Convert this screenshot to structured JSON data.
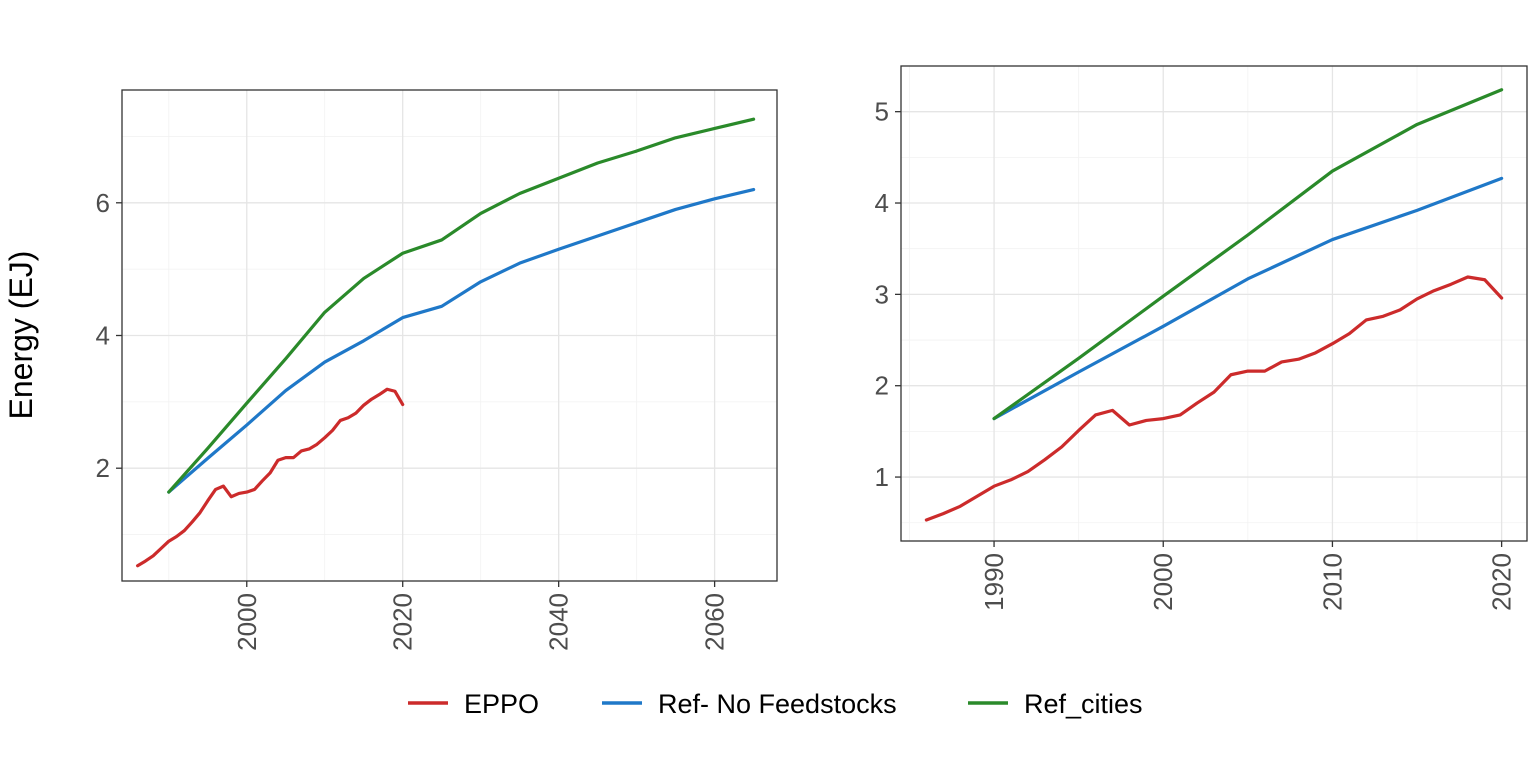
{
  "figure": {
    "ylabel": "Energy (EJ)"
  },
  "colors": {
    "EPPO": "#cc2b2b",
    "Ref- No Feedstocks": "#1f78c8",
    "Ref_cities": "#2a8a2a"
  },
  "legend": {
    "position": "bottom",
    "items": [
      "EPPO",
      "Ref- No Feedstocks",
      "Ref_cities"
    ]
  },
  "chart_data": [
    {
      "type": "line",
      "xlabel": "",
      "ylabel": "Energy (EJ)",
      "xlim": [
        1984,
        2068
      ],
      "ylim": [
        0.3,
        7.7
      ],
      "xticks": [
        2000,
        2020,
        2040,
        2060
      ],
      "xtick_labels": [
        "2000",
        "2020",
        "2040",
        "2060"
      ],
      "yticks": [
        2,
        4,
        6
      ],
      "ytick_labels": [
        "2",
        "4",
        "6"
      ],
      "grid": true,
      "series": [
        {
          "name": "EPPO",
          "x": [
            1986,
            1987,
            1988,
            1989,
            1990,
            1991,
            1992,
            1993,
            1994,
            1995,
            1996,
            1997,
            1998,
            1999,
            2000,
            2001,
            2002,
            2003,
            2004,
            2005,
            2006,
            2007,
            2008,
            2009,
            2010,
            2011,
            2012,
            2013,
            2014,
            2015,
            2016,
            2017,
            2018,
            2019,
            2020
          ],
          "y": [
            0.53,
            0.6,
            0.68,
            0.79,
            0.9,
            0.97,
            1.06,
            1.19,
            1.33,
            1.51,
            1.68,
            1.73,
            1.57,
            1.62,
            1.64,
            1.68,
            1.81,
            1.93,
            2.12,
            2.16,
            2.16,
            2.26,
            2.29,
            2.36,
            2.46,
            2.57,
            2.72,
            2.76,
            2.83,
            2.95,
            3.04,
            3.11,
            3.19,
            3.16,
            2.96
          ]
        },
        {
          "name": "Ref- No Feedstocks",
          "x": [
            1990,
            1995,
            2000,
            2005,
            2010,
            2015,
            2020,
            2025,
            2030,
            2035,
            2040,
            2045,
            2050,
            2055,
            2060,
            2065
          ],
          "y": [
            1.64,
            2.15,
            2.65,
            3.17,
            3.6,
            3.92,
            4.27,
            4.44,
            4.81,
            5.09,
            5.3,
            5.5,
            5.7,
            5.9,
            6.06,
            6.2
          ]
        },
        {
          "name": "Ref_cities",
          "x": [
            1990,
            1995,
            2000,
            2005,
            2010,
            2015,
            2020,
            2025,
            2030,
            2035,
            2040,
            2045,
            2050,
            2055,
            2060,
            2065
          ],
          "y": [
            1.64,
            2.3,
            2.98,
            3.65,
            4.35,
            4.86,
            5.24,
            5.44,
            5.84,
            6.14,
            6.37,
            6.6,
            6.78,
            6.98,
            7.12,
            7.26
          ]
        }
      ]
    },
    {
      "type": "line",
      "xlabel": "",
      "ylabel": "",
      "xlim": [
        1984.5,
        2021.5
      ],
      "ylim": [
        0.3,
        5.5
      ],
      "xticks": [
        1990,
        2000,
        2010,
        2020
      ],
      "xtick_labels": [
        "1990",
        "2000",
        "2010",
        "2020"
      ],
      "yticks": [
        1,
        2,
        3,
        4,
        5
      ],
      "ytick_labels": [
        "1",
        "2",
        "3",
        "4",
        "5"
      ],
      "grid": true,
      "series": [
        {
          "name": "EPPO",
          "x": [
            1986,
            1987,
            1988,
            1989,
            1990,
            1991,
            1992,
            1993,
            1994,
            1995,
            1996,
            1997,
            1998,
            1999,
            2000,
            2001,
            2002,
            2003,
            2004,
            2005,
            2006,
            2007,
            2008,
            2009,
            2010,
            2011,
            2012,
            2013,
            2014,
            2015,
            2016,
            2017,
            2018,
            2019,
            2020
          ],
          "y": [
            0.53,
            0.6,
            0.68,
            0.79,
            0.9,
            0.97,
            1.06,
            1.19,
            1.33,
            1.51,
            1.68,
            1.73,
            1.57,
            1.62,
            1.64,
            1.68,
            1.81,
            1.93,
            2.12,
            2.16,
            2.16,
            2.26,
            2.29,
            2.36,
            2.46,
            2.57,
            2.72,
            2.76,
            2.83,
            2.95,
            3.04,
            3.11,
            3.19,
            3.16,
            2.96
          ]
        },
        {
          "name": "Ref- No Feedstocks",
          "x": [
            1990,
            1995,
            2000,
            2005,
            2010,
            2015,
            2020
          ],
          "y": [
            1.64,
            2.15,
            2.65,
            3.17,
            3.6,
            3.92,
            4.27
          ]
        },
        {
          "name": "Ref_cities",
          "x": [
            1990,
            1995,
            2000,
            2005,
            2010,
            2015,
            2020
          ],
          "y": [
            1.64,
            2.3,
            2.98,
            3.65,
            4.35,
            4.86,
            5.24
          ]
        }
      ]
    }
  ]
}
